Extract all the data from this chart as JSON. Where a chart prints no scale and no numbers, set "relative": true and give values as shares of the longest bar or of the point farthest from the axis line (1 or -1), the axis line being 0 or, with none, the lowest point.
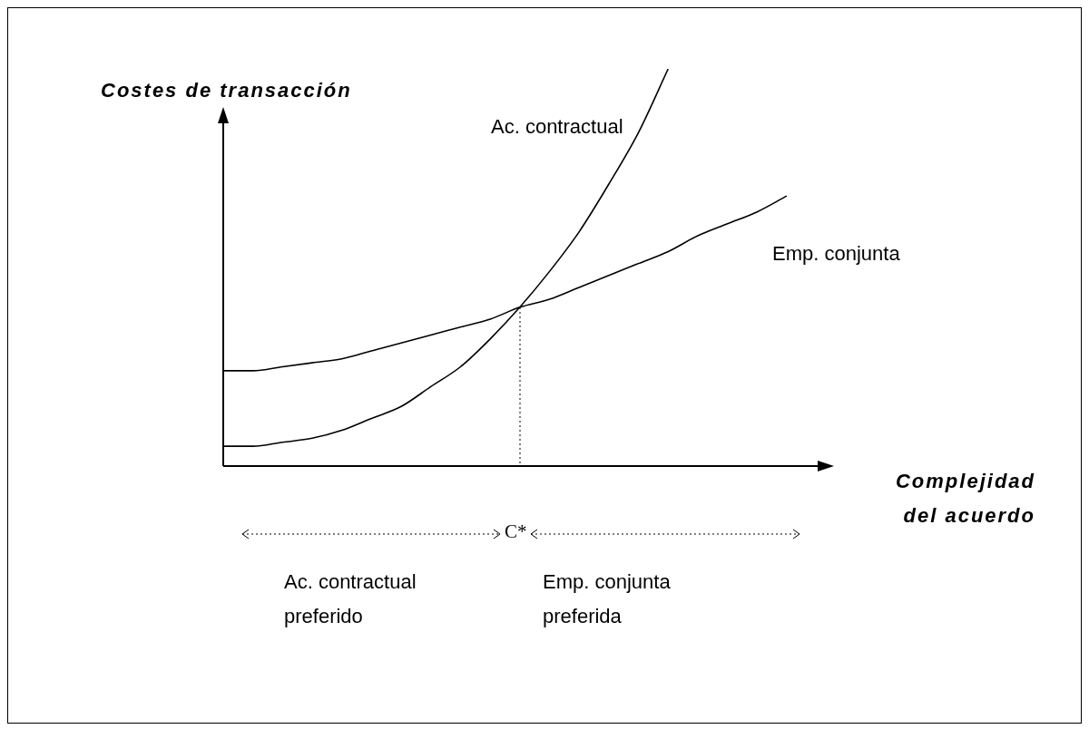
{
  "chart_data": {
    "type": "line",
    "relative": true,
    "ylabel": "Costes de transacción",
    "xlabel": "Complejidad del acuerdo",
    "categories": [
      null,
      null,
      null,
      null,
      null,
      null,
      null,
      null,
      null,
      null,
      null,
      null,
      null,
      null,
      null,
      null,
      null,
      null,
      null,
      null
    ],
    "series": [
      {
        "name": "Ac. contractual",
        "color": "#000000",
        "values": [
          0.05,
          0.05,
          0.06,
          0.07,
          0.09,
          0.12,
          0.15,
          0.2,
          0.25,
          0.32,
          0.4,
          0.49,
          0.59,
          0.71,
          0.84,
          1,
          null,
          null,
          null,
          null
        ]
      },
      {
        "name": "Emp. conjunta",
        "color": "#000000",
        "values": [
          0.24,
          0.24,
          0.25,
          0.26,
          0.27,
          0.29,
          0.31,
          0.33,
          0.35,
          0.37,
          0.4,
          0.42,
          0.45,
          0.48,
          0.51,
          0.54,
          0.58,
          0.61,
          0.64,
          0.68
        ]
      }
    ],
    "annotations": [
      "C*",
      "Ac. contractual preferido",
      "Emp. conjunta preferida"
    ],
    "legend": false,
    "marker": "none",
    "line_style": "solid"
  }
}
